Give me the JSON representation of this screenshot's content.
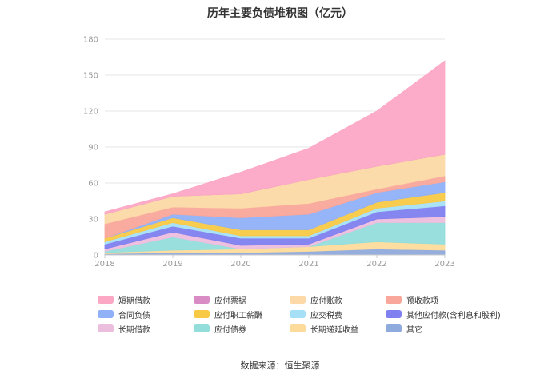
{
  "chart_data": {
    "type": "area",
    "stacked": true,
    "title": "历年主要负债堆积图（亿元）",
    "x": [
      "2018",
      "2019",
      "2020",
      "2021",
      "2022",
      "2023"
    ],
    "ylim": [
      0,
      180
    ],
    "yticks": [
      0,
      30,
      60,
      90,
      120,
      150,
      180
    ],
    "grid": true,
    "legend_position": "bottom",
    "series": [
      {
        "name": "其它",
        "color": "#8faadc",
        "values": [
          1,
          2,
          2,
          3,
          5,
          4
        ]
      },
      {
        "name": "长期递延收益",
        "color": "#fddc9b",
        "values": [
          1,
          2,
          3,
          4,
          6,
          5
        ]
      },
      {
        "name": "应付债券",
        "color": "#93dddb",
        "values": [
          1,
          11,
          0,
          0,
          16,
          18
        ]
      },
      {
        "name": "长期借款",
        "color": "#ecbedd",
        "values": [
          2,
          4,
          3,
          2,
          3,
          5
        ]
      },
      {
        "name": "其他应付款(含利息和股利)",
        "color": "#8080f0",
        "values": [
          4,
          5,
          6,
          5,
          6,
          9
        ]
      },
      {
        "name": "应交税费",
        "color": "#a6e0f6",
        "values": [
          2,
          3,
          2,
          2,
          3,
          4
        ]
      },
      {
        "name": "应付职工薪酬",
        "color": "#f8c945",
        "values": [
          3,
          4,
          5,
          5,
          5,
          7
        ]
      },
      {
        "name": "合同负债",
        "color": "#90b0f8",
        "values": [
          0,
          3,
          10,
          13,
          8,
          9
        ]
      },
      {
        "name": "预收款项",
        "color": "#f9a79b",
        "values": [
          12,
          6,
          8,
          9,
          3,
          5
        ]
      },
      {
        "name": "应付账款",
        "color": "#fcd9a6",
        "values": [
          8,
          9,
          12,
          20,
          19,
          18
        ]
      },
      {
        "name": "应付票据",
        "color": "#d98bc4",
        "values": [
          0,
          0,
          0,
          0,
          0,
          0
        ]
      },
      {
        "name": "短期借款",
        "color": "#fca8c5",
        "values": [
          2,
          2,
          18,
          26,
          46,
          78
        ]
      }
    ],
    "legend_order": [
      "短期借款",
      "应付票据",
      "应付账款",
      "预收款项",
      "合同负债",
      "应付职工薪酬",
      "应交税费",
      "其他应付款(含利息和股利)",
      "长期借款",
      "应付债券",
      "长期递延收益",
      "其它"
    ]
  },
  "source_text": "数据来源：恒生聚源"
}
